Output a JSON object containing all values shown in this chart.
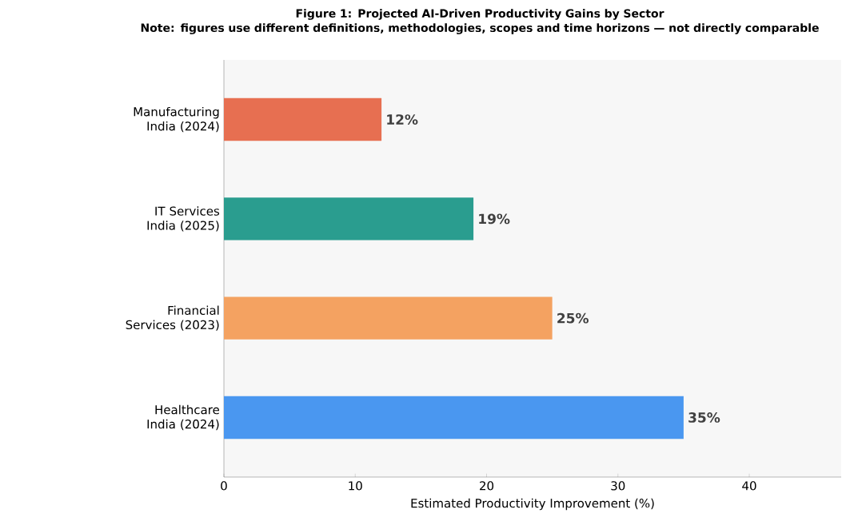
{
  "chart_data": {
    "type": "bar",
    "orientation": "horizontal",
    "title": "Figure 1: Projected AI-Driven Productivity Gains by Sector",
    "subtitle": "Note: figures use different definitions, methodologies, scopes and time horizons — not directly comparable",
    "categories": [
      "Manufacturing India (2024)",
      "IT Services India (2025)",
      "Financial Services (2023)",
      "Healthcare India (2024)"
    ],
    "values": [
      12,
      19,
      25,
      35
    ],
    "colors": [
      "#e76f51",
      "#2a9d8f",
      "#f4a261",
      "#4a97f0"
    ],
    "value_labels": [
      "12%",
      "19%",
      "25%",
      "35%"
    ],
    "xlabel": "Estimated Productivity Improvement (%)",
    "xlim": [
      0,
      47
    ],
    "xticks": [
      0,
      10,
      20,
      30,
      40
    ],
    "grid": false
  }
}
